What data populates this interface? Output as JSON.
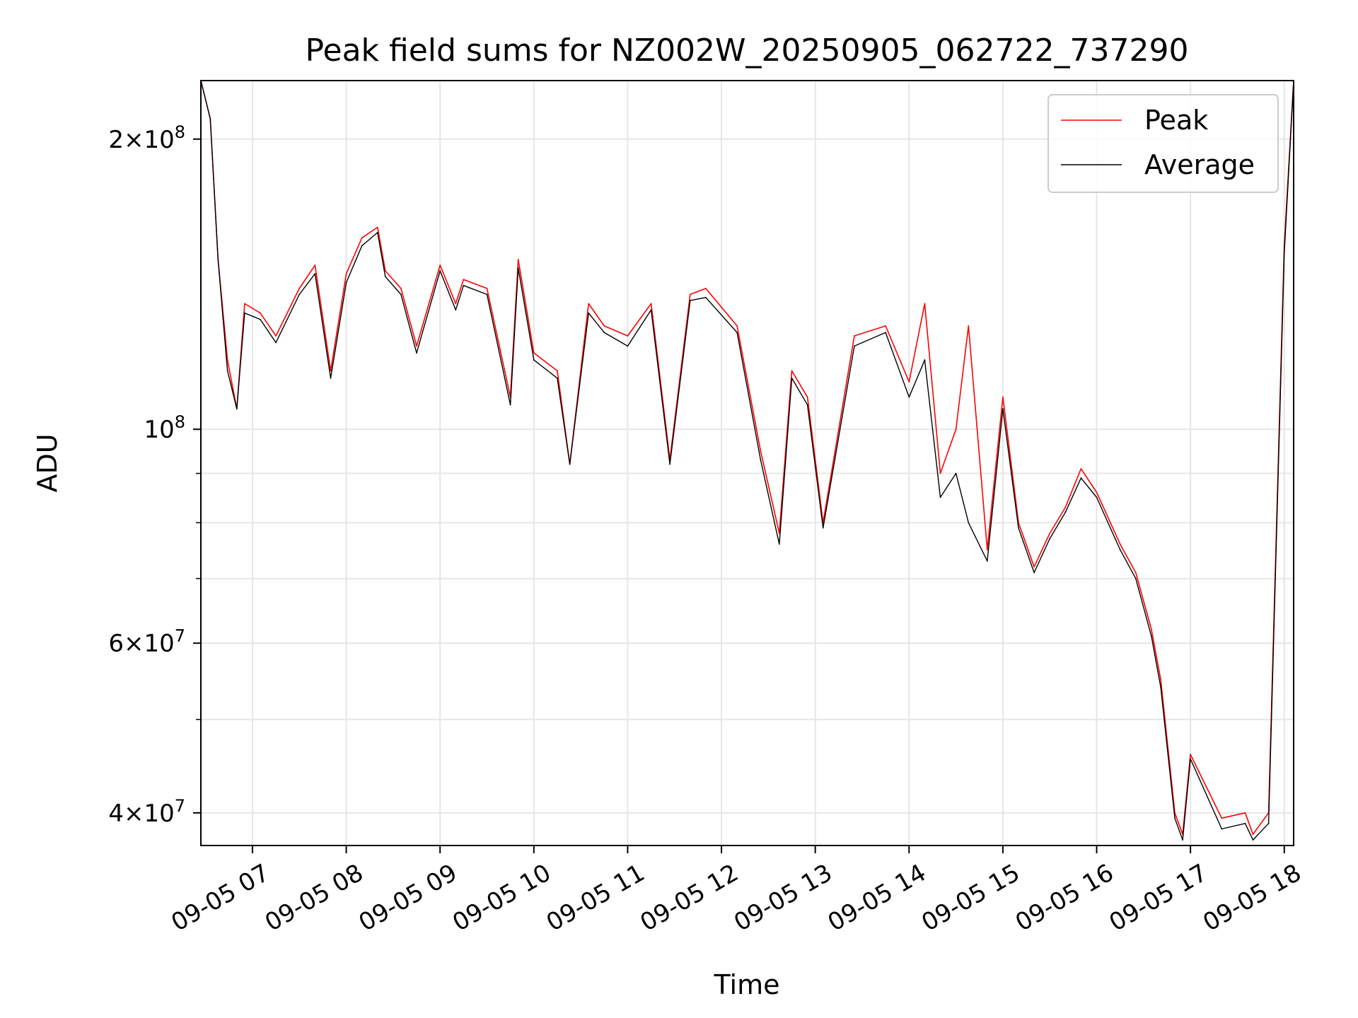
{
  "chart_data": {
    "type": "line",
    "title": "Peak field sums for NZ002W_20250905_062722_737290",
    "xlabel": "Time",
    "ylabel": "ADU",
    "yscale": "log",
    "grid": true,
    "legend_position": "upper right",
    "x_range": [
      "09-05 06:27",
      "09-05 18:06"
    ],
    "ylim": [
      37000000,
      230000000
    ],
    "x_tick_labels": [
      "09-05 07",
      "09-05 08",
      "09-05 09",
      "09-05 10",
      "09-05 11",
      "09-05 12",
      "09-05 13",
      "09-05 14",
      "09-05 15",
      "09-05 16",
      "09-05 17",
      "09-05 18"
    ],
    "y_tick_labels": [
      {
        "value": 40000000,
        "mantissa": "4",
        "exponent": "7"
      },
      {
        "value": 60000000,
        "mantissa": "6",
        "exponent": "7"
      },
      {
        "value": 100000000,
        "mantissa": "",
        "exponent": "8"
      },
      {
        "value": 200000000,
        "mantissa": "2",
        "exponent": "8"
      }
    ],
    "x": [
      "09-05 06:27",
      "09-05 06:33",
      "09-05 06:38",
      "09-05 06:44",
      "09-05 06:50",
      "09-05 06:55",
      "09-05 07:05",
      "09-05 07:15",
      "09-05 07:30",
      "09-05 07:40",
      "09-05 07:50",
      "09-05 08:00",
      "09-05 08:10",
      "09-05 08:20",
      "09-05 08:25",
      "09-05 08:35",
      "09-05 08:45",
      "09-05 09:00",
      "09-05 09:10",
      "09-05 09:15",
      "09-05 09:30",
      "09-05 09:45",
      "09-05 09:50",
      "09-05 10:00",
      "09-05 10:15",
      "09-05 10:23",
      "09-05 10:35",
      "09-05 10:45",
      "09-05 11:00",
      "09-05 11:15",
      "09-05 11:27",
      "09-05 11:40",
      "09-05 11:50",
      "09-05 12:10",
      "09-05 12:25",
      "09-05 12:37",
      "09-05 12:45",
      "09-05 12:55",
      "09-05 13:05",
      "09-05 13:25",
      "09-05 13:45",
      "09-05 14:00",
      "09-05 14:10",
      "09-05 14:20",
      "09-05 14:30",
      "09-05 14:38",
      "09-05 14:50",
      "09-05 15:00",
      "09-05 15:10",
      "09-05 15:20",
      "09-05 15:30",
      "09-05 15:40",
      "09-05 15:50",
      "09-05 16:00",
      "09-05 16:15",
      "09-05 16:25",
      "09-05 16:35",
      "09-05 16:41",
      "09-05 16:50",
      "09-05 16:55",
      "09-05 17:00",
      "09-05 17:20",
      "09-05 17:35",
      "09-05 17:40",
      "09-05 17:50",
      "09-05 18:00",
      "09-05 18:06"
    ],
    "series": [
      {
        "name": "Peak",
        "color": "#ff0000",
        "values": [
          230000000,
          210000000,
          150000000,
          118000000,
          105000000,
          135000000,
          132000000,
          125000000,
          140000000,
          148000000,
          115000000,
          145000000,
          158000000,
          162000000,
          146000000,
          140000000,
          122000000,
          148000000,
          135000000,
          143000000,
          140000000,
          108000000,
          150000000,
          120000000,
          115000000,
          92000000,
          135000000,
          128000000,
          125000000,
          135000000,
          93000000,
          138000000,
          140000000,
          128000000,
          95000000,
          78000000,
          115000000,
          108000000,
          80000000,
          125000000,
          128000000,
          112000000,
          135000000,
          90000000,
          100000000,
          128000000,
          75000000,
          108000000,
          80000000,
          72000000,
          78000000,
          83000000,
          91000000,
          86000000,
          76000000,
          71000000,
          62000000,
          55000000,
          40000000,
          38000000,
          46000000,
          39500000,
          40000000,
          38000000,
          40000000,
          155000000,
          230000000
        ]
      },
      {
        "name": "Average",
        "color": "#000000",
        "values": [
          230000000,
          210000000,
          150000000,
          115000000,
          105000000,
          132000000,
          130000000,
          123000000,
          138000000,
          145000000,
          113000000,
          142000000,
          155000000,
          160000000,
          144000000,
          138000000,
          120000000,
          146000000,
          133000000,
          141000000,
          138000000,
          106000000,
          147000000,
          118000000,
          113000000,
          92000000,
          132000000,
          126000000,
          122000000,
          133000000,
          92000000,
          136000000,
          137000000,
          126000000,
          93000000,
          76000000,
          113000000,
          106000000,
          79000000,
          122000000,
          126000000,
          108000000,
          118000000,
          85000000,
          90000000,
          80000000,
          73000000,
          105000000,
          79000000,
          71000000,
          77000000,
          82000000,
          89000000,
          85000000,
          75000000,
          70000000,
          61000000,
          54000000,
          39500000,
          37500000,
          45500000,
          38500000,
          39000000,
          37500000,
          39000000,
          152000000,
          230000000
        ]
      }
    ]
  }
}
